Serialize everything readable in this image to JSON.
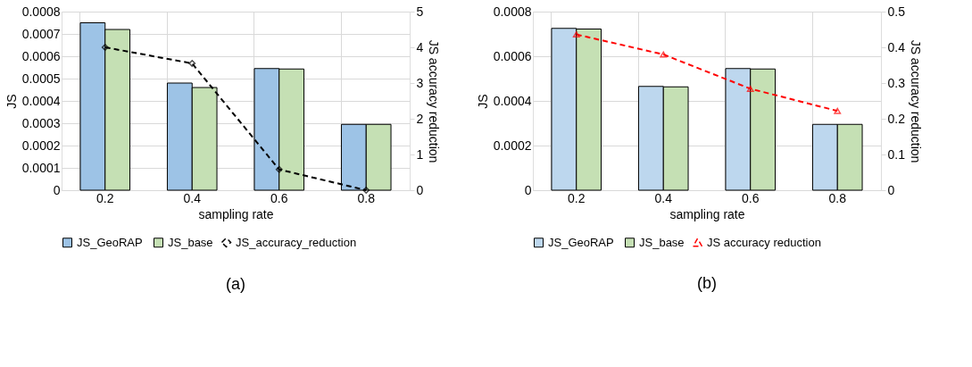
{
  "chart_data": [
    {
      "type": "bar",
      "categories": [
        "0.2",
        "0.4",
        "0.6",
        "0.8"
      ],
      "xlabel": "sampling rate",
      "ylabel": "JS",
      "y2label": "JS accuracy reduction",
      "series": [
        {
          "name": "JS_GeoRAP",
          "color": "#9dc3e6",
          "values": [
            0.00075,
            0.00048,
            0.000545,
            0.000295
          ]
        },
        {
          "name": "JS_base",
          "color": "#c5e0b4",
          "values": [
            0.00072,
            0.00046,
            0.000543,
            0.000295
          ]
        },
        {
          "name": "JS_accuracy_reduction",
          "type": "line",
          "axis": "y2",
          "color": "#000000",
          "marker": "diamond",
          "line_style": "dashed",
          "values": [
            4.0,
            3.55,
            0.58,
            0.0
          ]
        }
      ],
      "ylim": [
        0,
        0.0008
      ],
      "yticks": [
        {
          "value": 0,
          "label": "0"
        },
        0.0001,
        0.0002,
        0.0003,
        0.0004,
        0.0005,
        0.0006,
        0.0007,
        0.0008
      ],
      "y2lim": [
        0,
        5
      ],
      "y2ticks": [
        0,
        1,
        2,
        3,
        4,
        5
      ],
      "grid": true,
      "legend": "bottom",
      "annotations": [
        "(a)"
      ]
    },
    {
      "type": "bar",
      "categories": [
        "0.2",
        "0.4",
        "0.6",
        "0.8"
      ],
      "xlabel": "sampling rate",
      "ylabel": "JS",
      "y2label": "JS accuracy reduction",
      "series": [
        {
          "name": "JS_GeoRAP",
          "color": "#bdd7ee",
          "values": [
            0.000725,
            0.000465,
            0.000545,
            0.000295
          ]
        },
        {
          "name": "JS_base",
          "color": "#c5e0b4",
          "values": [
            0.000722,
            0.000463,
            0.000543,
            0.000295
          ]
        },
        {
          "name": "JS accuracy reduction",
          "type": "line",
          "axis": "y2",
          "color": "#ff0000",
          "marker": "triangle",
          "line_style": "dashed",
          "values": [
            0.436,
            0.38,
            0.284,
            0.222
          ]
        }
      ],
      "ylim": [
        0,
        0.0008
      ],
      "yticks": [
        {
          "value": 0,
          "label": "0"
        },
        0.0002,
        0.0004,
        0.0006,
        0.0008
      ],
      "y2lim": [
        0,
        0.5
      ],
      "y2ticks": [
        {
          "value": 0,
          "label": "0"
        },
        0.1,
        0.2,
        0.3,
        0.4,
        0.5
      ],
      "grid": true,
      "legend": "bottom",
      "annotations": [
        "(b)"
      ]
    }
  ]
}
